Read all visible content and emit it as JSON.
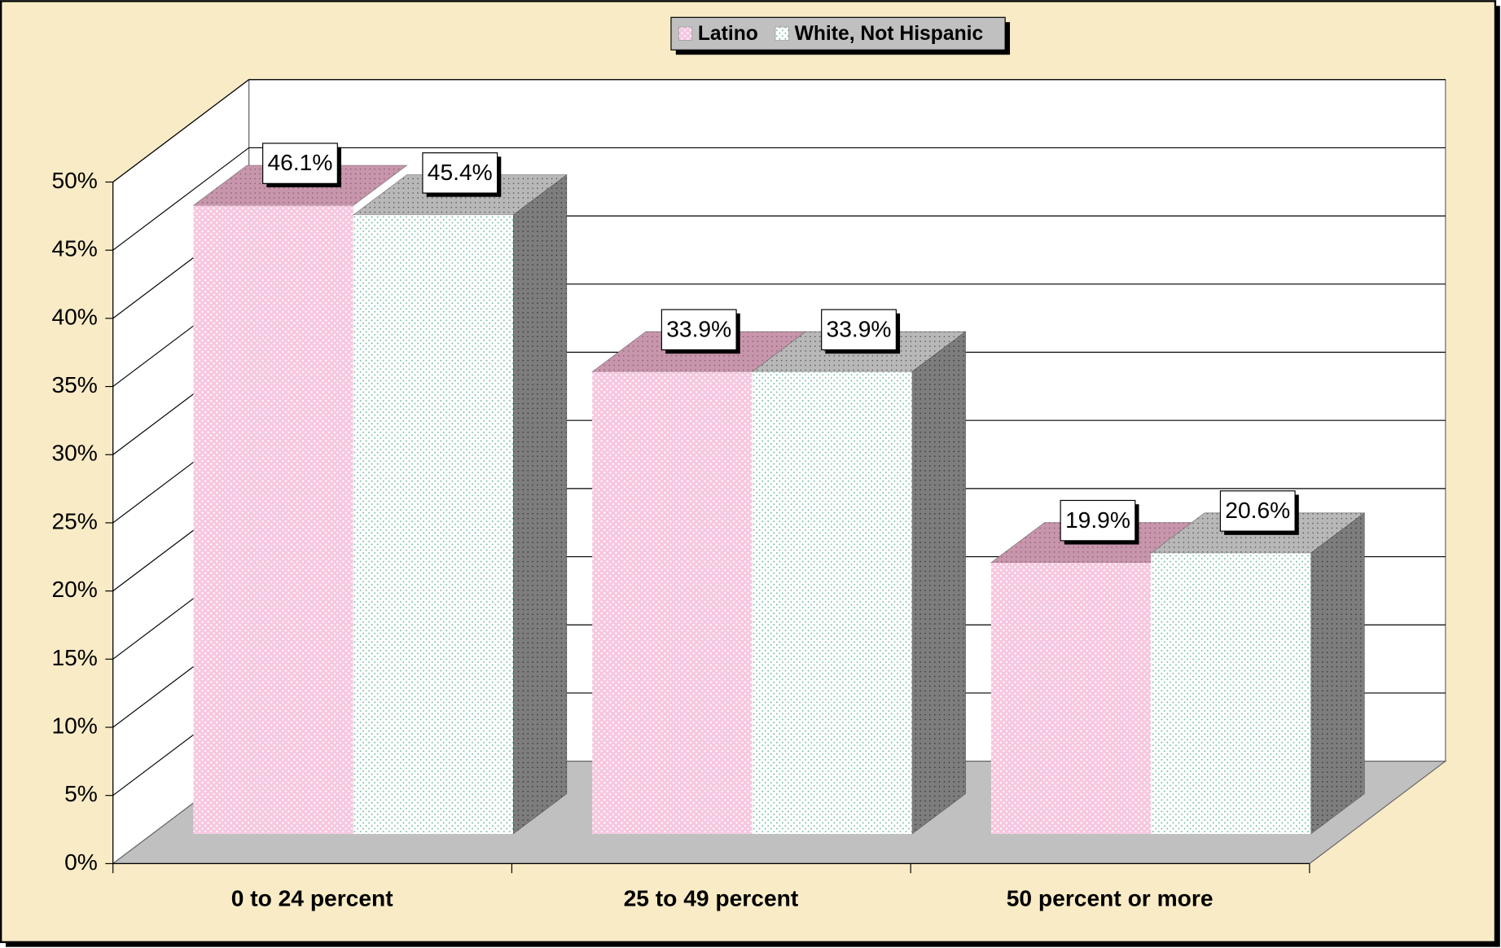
{
  "chart_data": {
    "type": "bar3d",
    "categories": [
      "0 to 24 percent",
      "25 to 49 percent",
      "50 percent or more"
    ],
    "series": [
      {
        "name": "Latino",
        "color": "#f7c6e0",
        "values": [
          46.1,
          33.9,
          19.9
        ],
        "value_labels": [
          "46.1%",
          "33.9%",
          "19.9%"
        ]
      },
      {
        "name": "White, Not Hispanic",
        "color": "#ffffff",
        "values": [
          45.4,
          33.9,
          20.6
        ],
        "value_labels": [
          "45.4%",
          "33.9%",
          "20.6%"
        ]
      }
    ],
    "ylim": [
      0,
      50
    ],
    "yticks": [
      {
        "value": 0,
        "label": "0%"
      },
      {
        "value": 5,
        "label": "5%"
      },
      {
        "value": 10,
        "label": "10%"
      },
      {
        "value": 15,
        "label": "15%"
      },
      {
        "value": 20,
        "label": "20%"
      },
      {
        "value": 25,
        "label": "25%"
      },
      {
        "value": 30,
        "label": "30%"
      },
      {
        "value": 35,
        "label": "35%"
      },
      {
        "value": 40,
        "label": "40%"
      },
      {
        "value": 45,
        "label": "45%"
      },
      {
        "value": 50,
        "label": "50%"
      }
    ],
    "grid": true,
    "legend": "top"
  }
}
